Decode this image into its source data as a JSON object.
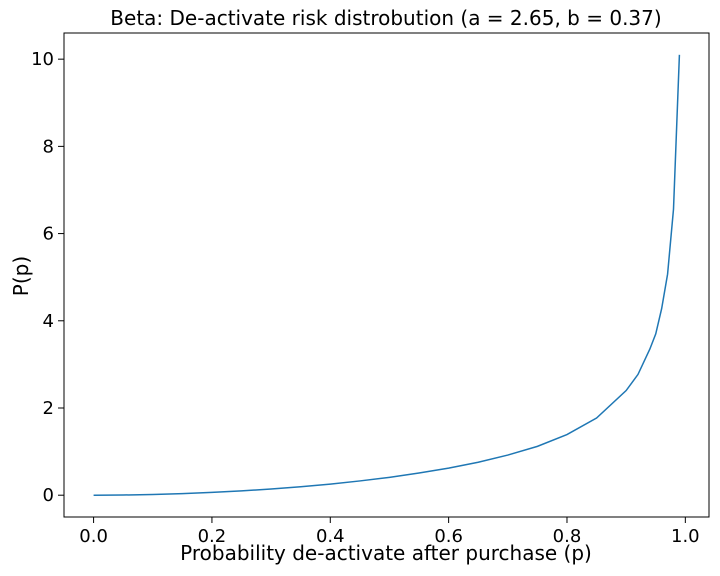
{
  "chart_data": {
    "type": "line",
    "title": "Beta: De-activate risk distrobution (a = 2.65, b  = 0.37)",
    "xlabel": "Probability de-activate after purchase (p)",
    "ylabel": "P(p)",
    "xlim": [
      -0.05,
      1.04
    ],
    "ylim": [
      -0.5,
      10.6
    ],
    "xticks": [
      0.0,
      0.2,
      0.4,
      0.6,
      0.8,
      1.0
    ],
    "xtick_labels": [
      "0.0",
      "0.2",
      "0.4",
      "0.6",
      "0.8",
      "1.0"
    ],
    "yticks": [
      0,
      2,
      4,
      6,
      8,
      10
    ],
    "ytick_labels": [
      "0",
      "2",
      "4",
      "6",
      "8",
      "10"
    ],
    "grid": false,
    "line_color": "#1f77b4",
    "series": [
      {
        "x": [
          0.0,
          0.05,
          0.1,
          0.15,
          0.2,
          0.25,
          0.3,
          0.35,
          0.4,
          0.45,
          0.5,
          0.55,
          0.6,
          0.65,
          0.7,
          0.75,
          0.8,
          0.85,
          0.9,
          0.92,
          0.94,
          0.95,
          0.96,
          0.97,
          0.98,
          0.99
        ],
        "values": [
          0.0,
          0.004,
          0.017,
          0.037,
          0.064,
          0.099,
          0.142,
          0.194,
          0.255,
          0.327,
          0.41,
          0.508,
          0.62,
          0.756,
          0.92,
          1.12,
          1.39,
          1.77,
          2.4,
          2.77,
          3.35,
          3.7,
          4.28,
          5.07,
          6.56,
          10.1
        ]
      }
    ]
  }
}
